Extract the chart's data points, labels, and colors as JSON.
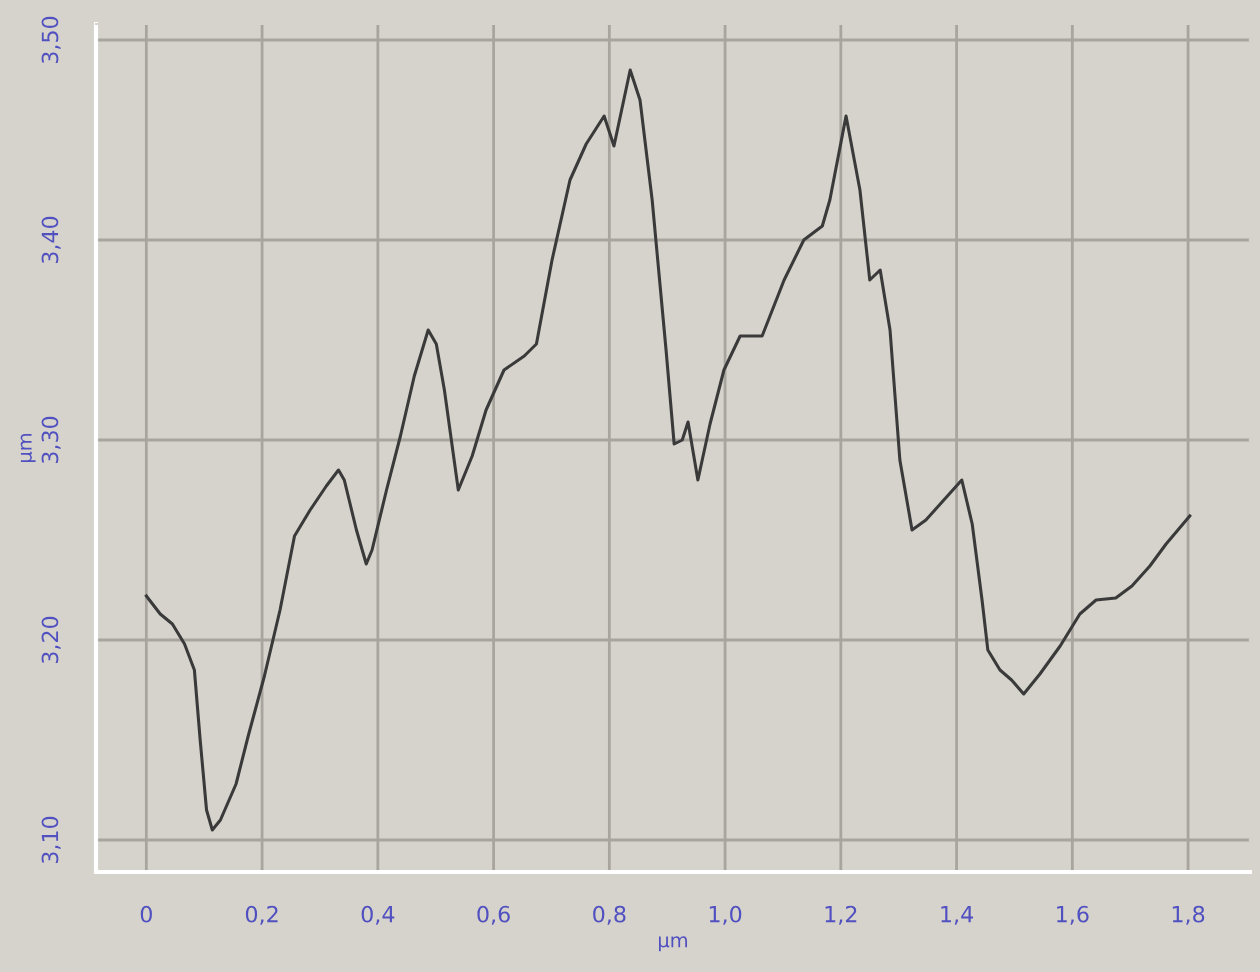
{
  "chart_data": {
    "type": "line",
    "xlabel": "µm",
    "ylabel": "µm",
    "x": [
      0,
      0.024,
      0.045,
      0.066,
      0.083,
      0.093,
      0.104,
      0.114,
      0.128,
      0.155,
      0.176,
      0.204,
      0.231,
      0.256,
      0.283,
      0.311,
      0.332,
      0.342,
      0.363,
      0.38,
      0.39,
      0.415,
      0.439,
      0.463,
      0.487,
      0.501,
      0.515,
      0.539,
      0.563,
      0.587,
      0.618,
      0.653,
      0.674,
      0.701,
      0.732,
      0.76,
      0.791,
      0.808,
      0.836,
      0.853,
      0.874,
      0.898,
      0.912,
      0.926,
      0.936,
      0.953,
      0.974,
      0.998,
      1.026,
      1.064,
      1.102,
      1.136,
      1.168,
      1.181,
      1.209,
      1.233,
      1.25,
      1.268,
      1.285,
      1.302,
      1.323,
      1.347,
      1.378,
      1.409,
      1.427,
      1.444,
      1.454,
      1.475,
      1.495,
      1.516,
      1.544,
      1.579,
      1.613,
      1.641,
      1.675,
      1.703,
      1.734,
      1.762,
      1.803
    ],
    "series": [
      {
        "color": "#3a3a3a",
        "values": [
          3.222,
          3.213,
          3.208,
          3.198,
          3.185,
          3.15,
          3.115,
          3.105,
          3.11,
          3.128,
          3.152,
          3.182,
          3.215,
          3.252,
          3.265,
          3.277,
          3.285,
          3.28,
          3.255,
          3.238,
          3.245,
          3.275,
          3.302,
          3.332,
          3.355,
          3.348,
          3.325,
          3.275,
          3.292,
          3.315,
          3.335,
          3.342,
          3.348,
          3.39,
          3.43,
          3.448,
          3.462,
          3.447,
          3.485,
          3.47,
          3.42,
          3.345,
          3.298,
          3.3,
          3.309,
          3.28,
          3.308,
          3.335,
          3.352,
          3.352,
          3.38,
          3.4,
          3.407,
          3.42,
          3.462,
          3.425,
          3.38,
          3.385,
          3.355,
          3.29,
          3.255,
          3.26,
          3.27,
          3.28,
          3.258,
          3.22,
          3.195,
          3.185,
          3.18,
          3.173,
          3.183,
          3.197,
          3.213,
          3.22,
          3.221,
          3.227,
          3.237,
          3.248,
          3.262
        ]
      }
    ],
    "xlim": [
      -0.087,
      1.907
    ],
    "ylim": [
      3.084,
      3.508
    ],
    "xticks": [
      0,
      {
        "value": 0.2,
        "label": "0,2"
      },
      {
        "value": 0.4,
        "label": "0,4"
      },
      {
        "value": 0.6,
        "label": "0,6"
      },
      {
        "value": 0.8,
        "label": "0,8"
      },
      {
        "value": 1.0,
        "label": "1,0"
      },
      {
        "value": 1.2,
        "label": "1,2"
      },
      {
        "value": 1.4,
        "label": "1,4"
      },
      {
        "value": 1.6,
        "label": "1,6"
      },
      {
        "value": 1.8,
        "label": "1,8"
      }
    ],
    "yticks": [
      {
        "value": 3.1,
        "label": "3,10"
      },
      {
        "value": 3.2,
        "label": "3,20"
      },
      {
        "value": 3.3,
        "label": "3,30"
      },
      {
        "value": 3.4,
        "label": "3,40"
      },
      {
        "value": 3.5,
        "label": "3,50"
      }
    ],
    "grid": true,
    "marker": "none",
    "line_style": "solid"
  }
}
